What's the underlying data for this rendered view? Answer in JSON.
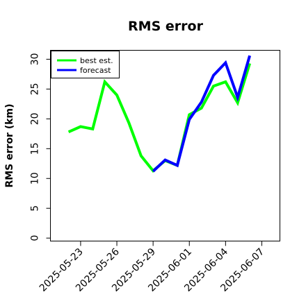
{
  "chart_data": {
    "type": "line",
    "title": "RMS error",
    "ylabel": "RMS error (km)",
    "xlabel": "",
    "x_ticks": [
      {
        "label": "2025-05-23",
        "color": "#000000"
      },
      {
        "label": "2025-05-26",
        "color": "#000000"
      },
      {
        "label": "2025-05-29",
        "color": "#2e8b22"
      },
      {
        "label": "2025-06-01",
        "color": "#000000"
      },
      {
        "label": "2025-06-04",
        "color": "#000000"
      },
      {
        "label": "2025-06-07",
        "color": "#000000"
      }
    ],
    "y_ticks": [
      "0",
      "5",
      "10",
      "15",
      "20",
      "25",
      "30"
    ],
    "xlim": [
      "2025-05-20T12:00",
      "2025-06-08T12:00"
    ],
    "ylim": [
      -0.5,
      31.5
    ],
    "grid": false,
    "legend_position": "top-left",
    "series": [
      {
        "name": "best est.",
        "color": "#00ff00",
        "points": [
          [
            "2025-05-22",
            17.8
          ],
          [
            "2025-05-23",
            18.7
          ],
          [
            "2025-05-24",
            18.3
          ],
          [
            "2025-05-25",
            26.2
          ],
          [
            "2025-05-26",
            24.0
          ],
          [
            "2025-05-27",
            19.3
          ],
          [
            "2025-05-28",
            13.8
          ],
          [
            "2025-05-29",
            11.3
          ],
          [
            "2025-05-30",
            13.0
          ],
          [
            "2025-05-31",
            12.2
          ],
          [
            "2025-06-01",
            20.7
          ],
          [
            "2025-06-02",
            21.8
          ],
          [
            "2025-06-03",
            25.5
          ],
          [
            "2025-06-04",
            26.2
          ],
          [
            "2025-06-05",
            22.7
          ],
          [
            "2025-06-06",
            29.3
          ]
        ]
      },
      {
        "name": "forecast",
        "color": "#0000ff",
        "points": [
          [
            "2025-05-29",
            11.2
          ],
          [
            "2025-05-30",
            13.1
          ],
          [
            "2025-05-31",
            12.2
          ],
          [
            "2025-06-01",
            19.9
          ],
          [
            "2025-06-02",
            22.8
          ],
          [
            "2025-06-03",
            27.3
          ],
          [
            "2025-06-04",
            29.4
          ],
          [
            "2025-06-05",
            23.6
          ],
          [
            "2025-06-06",
            30.6
          ]
        ]
      }
    ]
  }
}
